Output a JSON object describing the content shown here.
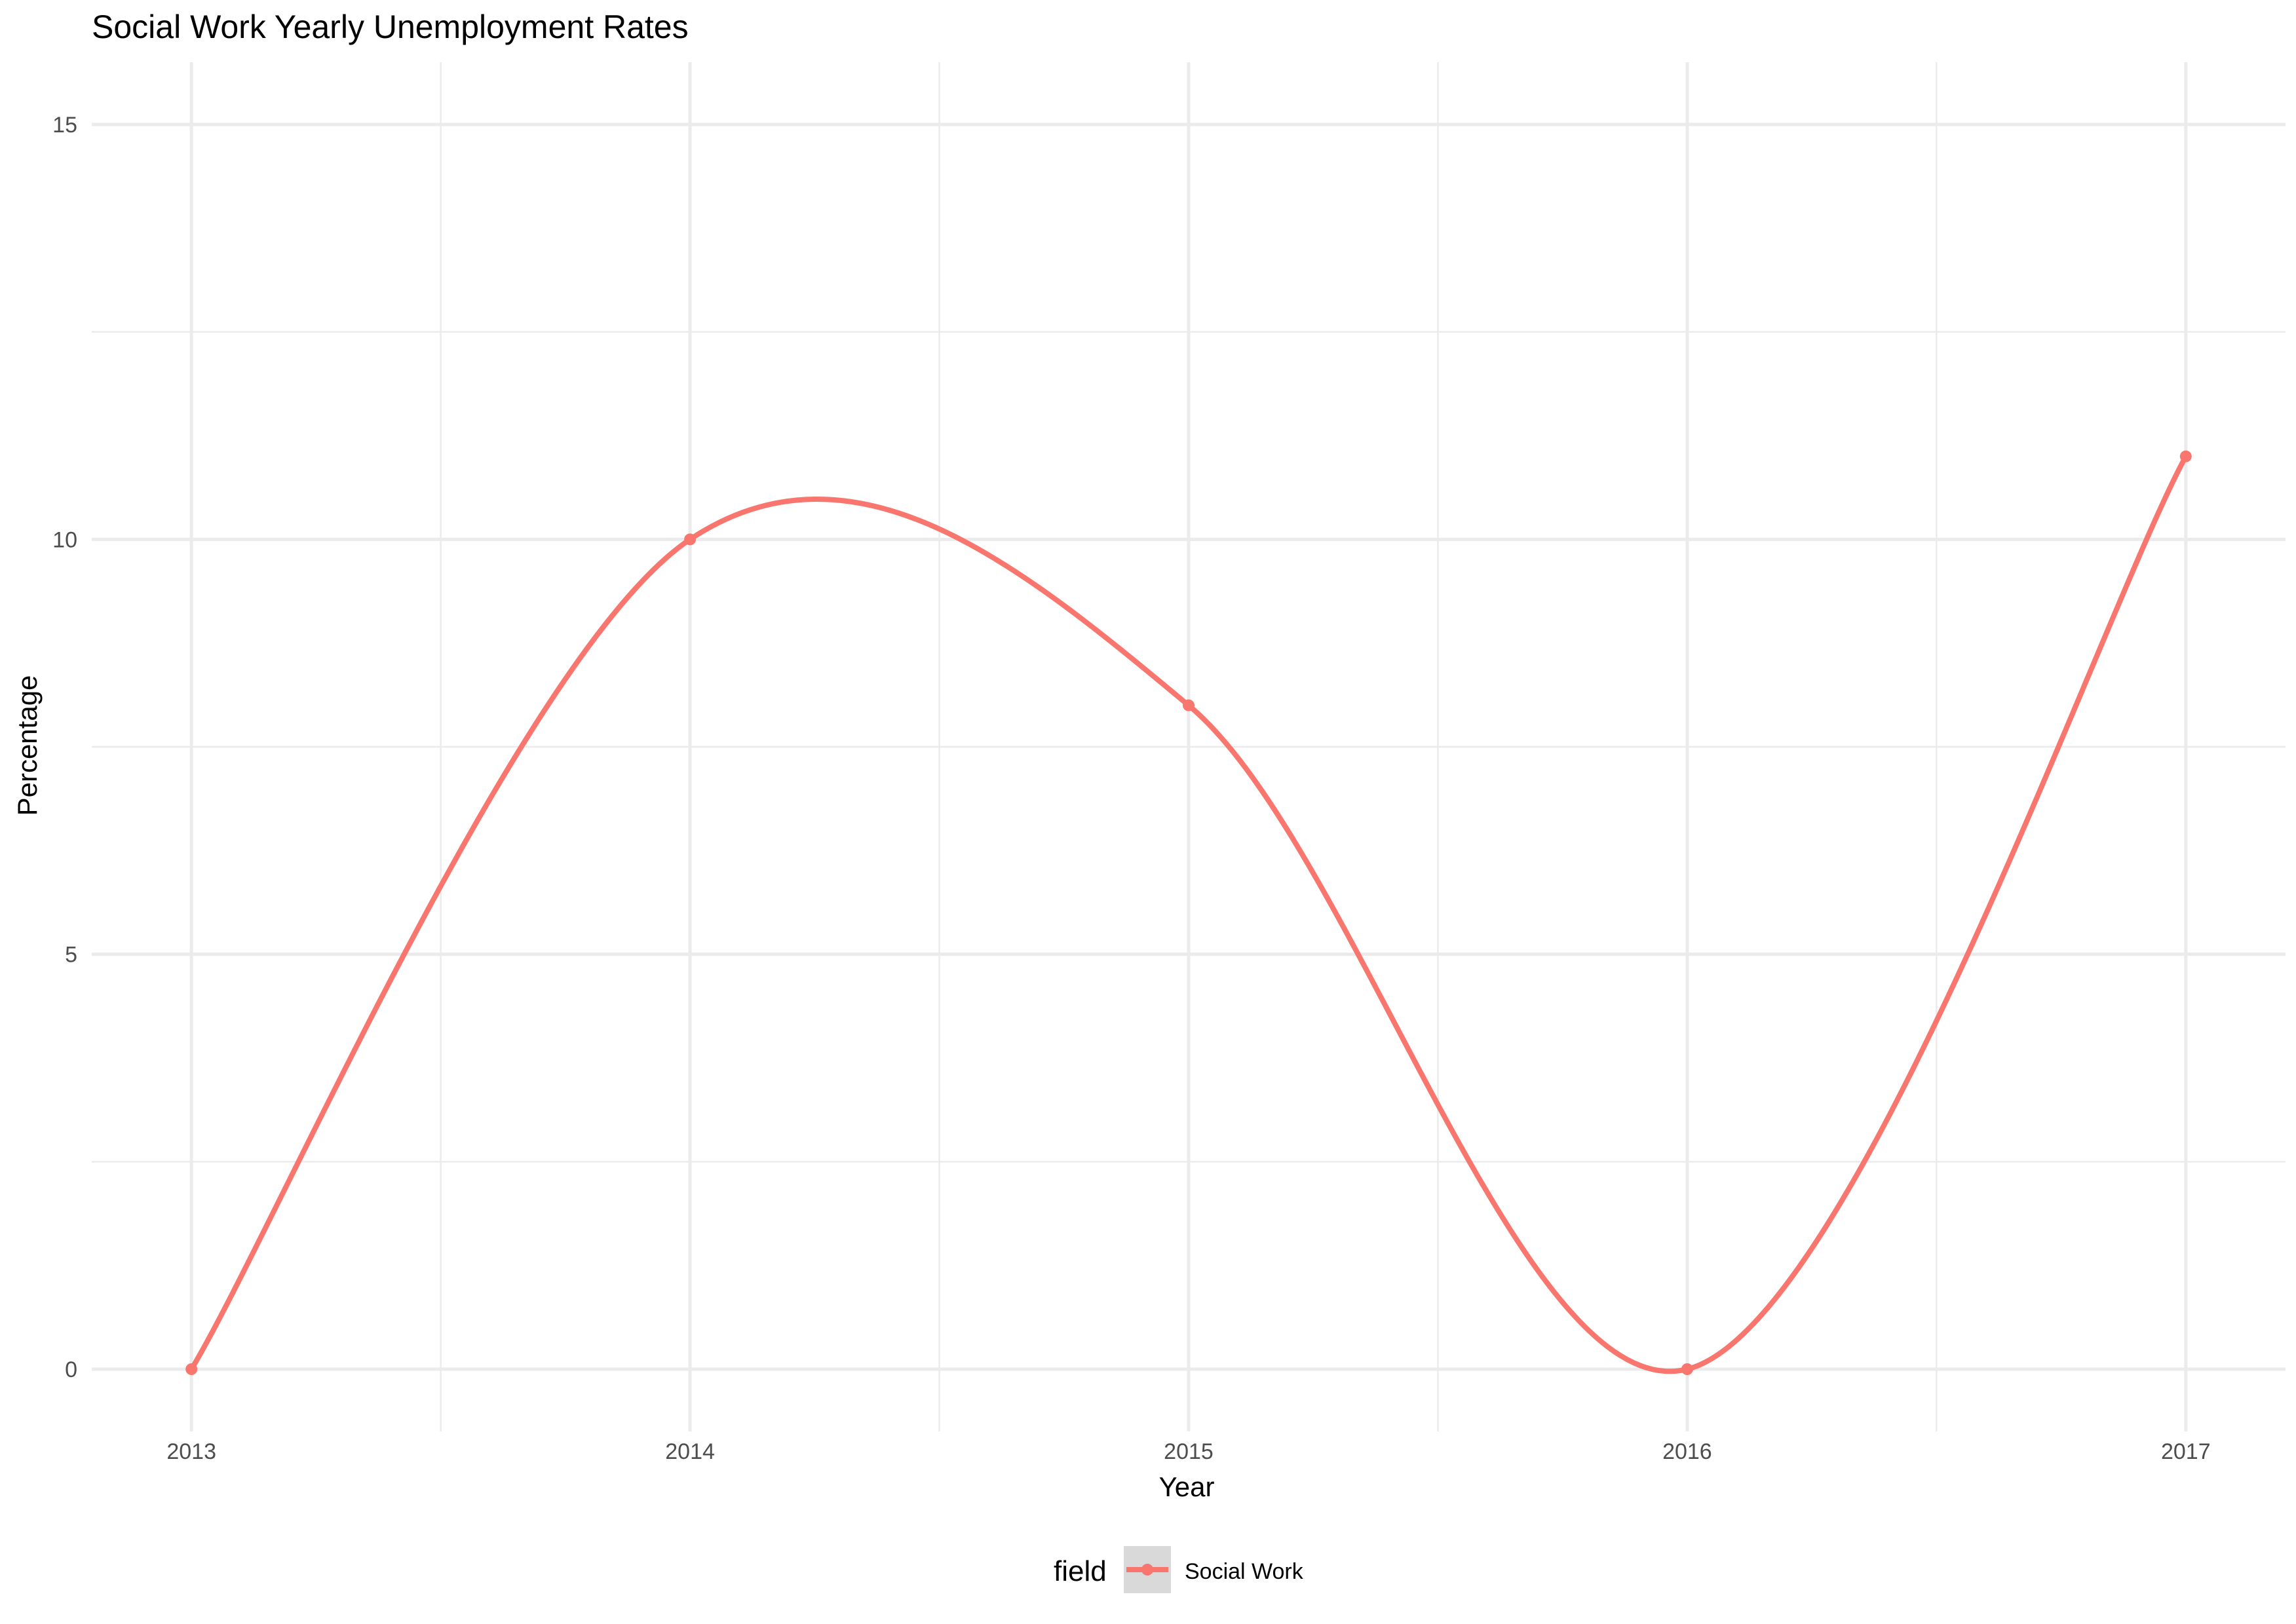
{
  "chart_data": {
    "type": "line",
    "title": "Social Work Yearly Unemployment Rates",
    "xlabel": "Year",
    "ylabel": "Percentage",
    "x": [
      2013,
      2014,
      2015,
      2016,
      2017
    ],
    "x_tick_labels": [
      "2013",
      "2014",
      "2015",
      "2016",
      "2017"
    ],
    "y_ticks": [
      0,
      5,
      10,
      15
    ],
    "y_tick_labels": [
      "0",
      "5",
      "10",
      "15"
    ],
    "xlim": [
      2012.8,
      2017.2
    ],
    "ylim": [
      -0.75,
      15.75
    ],
    "grid": true,
    "smoothed": true,
    "legend": {
      "title": "field",
      "position": "bottom"
    },
    "series": [
      {
        "name": "Social Work",
        "color": "#F8766D",
        "values": [
          0,
          10,
          8,
          0,
          11
        ]
      }
    ]
  }
}
